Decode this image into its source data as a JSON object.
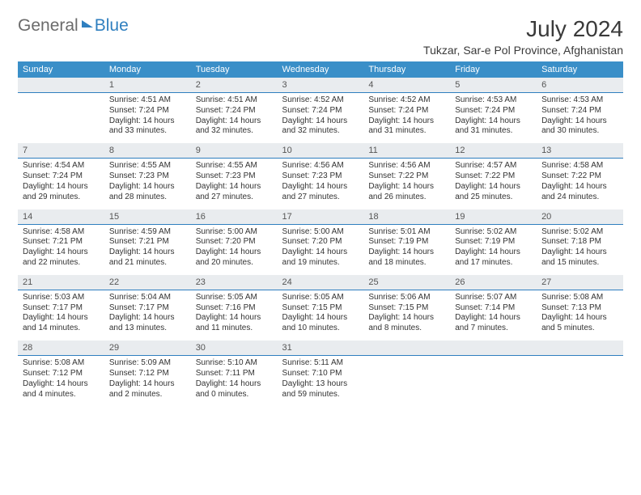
{
  "logo": {
    "general": "General",
    "blue": "Blue"
  },
  "title": "July 2024",
  "location": "Tukzar, Sar-e Pol Province, Afghanistan",
  "colors": {
    "header_bg": "#3a8fc8",
    "header_text": "#ffffff",
    "daynum_bg": "#e9ecef",
    "daynum_border": "#2f7fbf",
    "text": "#333333",
    "logo_gray": "#6b6b6b",
    "logo_blue": "#2f7fbf"
  },
  "weekdays": [
    "Sunday",
    "Monday",
    "Tuesday",
    "Wednesday",
    "Thursday",
    "Friday",
    "Saturday"
  ],
  "weeks": [
    [
      null,
      {
        "n": "1",
        "sunrise": "4:51 AM",
        "sunset": "7:24 PM",
        "daylight": "14 hours and 33 minutes."
      },
      {
        "n": "2",
        "sunrise": "4:51 AM",
        "sunset": "7:24 PM",
        "daylight": "14 hours and 32 minutes."
      },
      {
        "n": "3",
        "sunrise": "4:52 AM",
        "sunset": "7:24 PM",
        "daylight": "14 hours and 32 minutes."
      },
      {
        "n": "4",
        "sunrise": "4:52 AM",
        "sunset": "7:24 PM",
        "daylight": "14 hours and 31 minutes."
      },
      {
        "n": "5",
        "sunrise": "4:53 AM",
        "sunset": "7:24 PM",
        "daylight": "14 hours and 31 minutes."
      },
      {
        "n": "6",
        "sunrise": "4:53 AM",
        "sunset": "7:24 PM",
        "daylight": "14 hours and 30 minutes."
      }
    ],
    [
      {
        "n": "7",
        "sunrise": "4:54 AM",
        "sunset": "7:24 PM",
        "daylight": "14 hours and 29 minutes."
      },
      {
        "n": "8",
        "sunrise": "4:55 AM",
        "sunset": "7:23 PM",
        "daylight": "14 hours and 28 minutes."
      },
      {
        "n": "9",
        "sunrise": "4:55 AM",
        "sunset": "7:23 PM",
        "daylight": "14 hours and 27 minutes."
      },
      {
        "n": "10",
        "sunrise": "4:56 AM",
        "sunset": "7:23 PM",
        "daylight": "14 hours and 27 minutes."
      },
      {
        "n": "11",
        "sunrise": "4:56 AM",
        "sunset": "7:22 PM",
        "daylight": "14 hours and 26 minutes."
      },
      {
        "n": "12",
        "sunrise": "4:57 AM",
        "sunset": "7:22 PM",
        "daylight": "14 hours and 25 minutes."
      },
      {
        "n": "13",
        "sunrise": "4:58 AM",
        "sunset": "7:22 PM",
        "daylight": "14 hours and 24 minutes."
      }
    ],
    [
      {
        "n": "14",
        "sunrise": "4:58 AM",
        "sunset": "7:21 PM",
        "daylight": "14 hours and 22 minutes."
      },
      {
        "n": "15",
        "sunrise": "4:59 AM",
        "sunset": "7:21 PM",
        "daylight": "14 hours and 21 minutes."
      },
      {
        "n": "16",
        "sunrise": "5:00 AM",
        "sunset": "7:20 PM",
        "daylight": "14 hours and 20 minutes."
      },
      {
        "n": "17",
        "sunrise": "5:00 AM",
        "sunset": "7:20 PM",
        "daylight": "14 hours and 19 minutes."
      },
      {
        "n": "18",
        "sunrise": "5:01 AM",
        "sunset": "7:19 PM",
        "daylight": "14 hours and 18 minutes."
      },
      {
        "n": "19",
        "sunrise": "5:02 AM",
        "sunset": "7:19 PM",
        "daylight": "14 hours and 17 minutes."
      },
      {
        "n": "20",
        "sunrise": "5:02 AM",
        "sunset": "7:18 PM",
        "daylight": "14 hours and 15 minutes."
      }
    ],
    [
      {
        "n": "21",
        "sunrise": "5:03 AM",
        "sunset": "7:17 PM",
        "daylight": "14 hours and 14 minutes."
      },
      {
        "n": "22",
        "sunrise": "5:04 AM",
        "sunset": "7:17 PM",
        "daylight": "14 hours and 13 minutes."
      },
      {
        "n": "23",
        "sunrise": "5:05 AM",
        "sunset": "7:16 PM",
        "daylight": "14 hours and 11 minutes."
      },
      {
        "n": "24",
        "sunrise": "5:05 AM",
        "sunset": "7:15 PM",
        "daylight": "14 hours and 10 minutes."
      },
      {
        "n": "25",
        "sunrise": "5:06 AM",
        "sunset": "7:15 PM",
        "daylight": "14 hours and 8 minutes."
      },
      {
        "n": "26",
        "sunrise": "5:07 AM",
        "sunset": "7:14 PM",
        "daylight": "14 hours and 7 minutes."
      },
      {
        "n": "27",
        "sunrise": "5:08 AM",
        "sunset": "7:13 PM",
        "daylight": "14 hours and 5 minutes."
      }
    ],
    [
      {
        "n": "28",
        "sunrise": "5:08 AM",
        "sunset": "7:12 PM",
        "daylight": "14 hours and 4 minutes."
      },
      {
        "n": "29",
        "sunrise": "5:09 AM",
        "sunset": "7:12 PM",
        "daylight": "14 hours and 2 minutes."
      },
      {
        "n": "30",
        "sunrise": "5:10 AM",
        "sunset": "7:11 PM",
        "daylight": "14 hours and 0 minutes."
      },
      {
        "n": "31",
        "sunrise": "5:11 AM",
        "sunset": "7:10 PM",
        "daylight": "13 hours and 59 minutes."
      },
      null,
      null,
      null
    ]
  ],
  "labels": {
    "sunrise": "Sunrise: ",
    "sunset": "Sunset: ",
    "daylight": "Daylight: "
  }
}
